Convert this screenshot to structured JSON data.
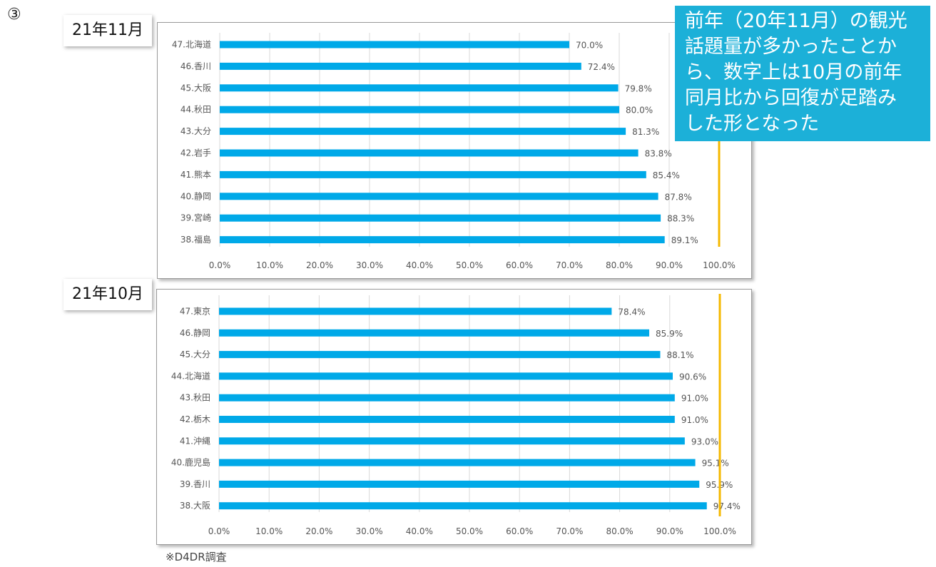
{
  "slide": {
    "marker": "③",
    "source_note": "※D4DR調査",
    "callout_text": [
      "前年（20年11月）の観光",
      "話題量が多かったことか",
      "ら、数字上は10月の前年",
      "同月比から回復が足踏み",
      "した形となった"
    ]
  },
  "colors": {
    "bar": "#00a9e8",
    "reference_line": "#f5b800",
    "grid": "#d9d9d9",
    "callout_bg": "#1cb0d8"
  },
  "chart_data": [
    {
      "type": "bar",
      "orientation": "horizontal",
      "panel_label": "21年11月",
      "categories": [
        "47.北海道",
        "46.香川",
        "45.大阪",
        "44.秋田",
        "43.大分",
        "42.岩手",
        "41.熊本",
        "40.静岡",
        "39.宮崎",
        "38.福島"
      ],
      "values": [
        70.0,
        72.4,
        79.8,
        80.0,
        81.3,
        83.8,
        85.4,
        87.8,
        88.3,
        89.1
      ],
      "value_labels": [
        "70.0%",
        "72.4%",
        "79.8%",
        "80.0%",
        "81.3%",
        "83.8%",
        "85.4%",
        "87.8%",
        "88.3%",
        "89.1%"
      ],
      "x_ticks": [
        "0.0%",
        "10.0%",
        "20.0%",
        "30.0%",
        "40.0%",
        "50.0%",
        "60.0%",
        "70.0%",
        "80.0%",
        "90.0%",
        "100.0%"
      ],
      "xlim": [
        0,
        100
      ],
      "reference_line": 100,
      "grid": true
    },
    {
      "type": "bar",
      "orientation": "horizontal",
      "panel_label": "21年10月",
      "categories": [
        "47.東京",
        "46.静岡",
        "45.大分",
        "44.北海道",
        "43.秋田",
        "42.栃木",
        "41.沖縄",
        "40.鹿児島",
        "39.香川",
        "38.大阪"
      ],
      "values": [
        78.4,
        85.9,
        88.1,
        90.6,
        91.0,
        91.0,
        93.0,
        95.1,
        95.9,
        97.4
      ],
      "value_labels": [
        "78.4%",
        "85.9%",
        "88.1%",
        "90.6%",
        "91.0%",
        "91.0%",
        "93.0%",
        "95.1%",
        "95.9%",
        "97.4%"
      ],
      "x_ticks": [
        "0.0%",
        "10.0%",
        "20.0%",
        "30.0%",
        "40.0%",
        "50.0%",
        "60.0%",
        "70.0%",
        "80.0%",
        "90.0%",
        "100.0%"
      ],
      "xlim": [
        0,
        100
      ],
      "reference_line": 100,
      "grid": true
    }
  ]
}
